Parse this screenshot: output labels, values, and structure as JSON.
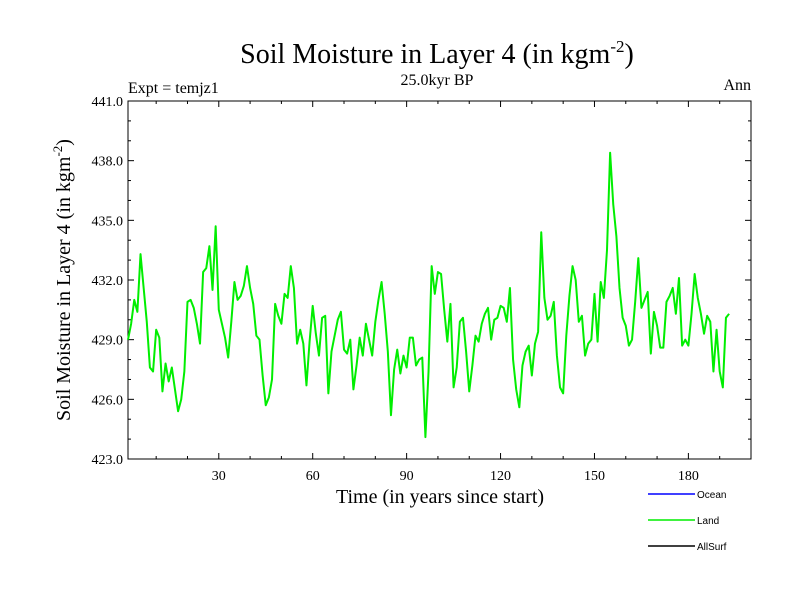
{
  "chart_data": {
    "type": "line",
    "title": "Soil Moisture in Layer 4 (in kgm",
    "title_sup": "-2",
    "title_close": ")",
    "subtitle_left": "Expt = temjz1",
    "subtitle_center": "25.0kyr BP",
    "subtitle_right": "Ann",
    "xlabel": "Time (in years since start)",
    "ylabel": "Soil Moisture in Layer 4 (in kgm",
    "ylabel_sup": "-2",
    "ylabel_close": ")",
    "xlim": [
      1,
      200
    ],
    "ylim": [
      423.0,
      441.0
    ],
    "xticks": [
      30,
      60,
      90,
      120,
      150,
      180
    ],
    "xtick_labels": [
      "30",
      "60",
      "90",
      "120",
      "150",
      "180"
    ],
    "yticks": [
      423.0,
      426.0,
      429.0,
      432.0,
      435.0,
      438.0,
      441.0
    ],
    "ytick_labels": [
      "423.0",
      "426.0",
      "429.0",
      "432.0",
      "435.0",
      "438.0",
      "441.0"
    ],
    "legend": [
      {
        "name": "Ocean",
        "color": "#0000ff"
      },
      {
        "name": "Land",
        "color": "#00ee00"
      },
      {
        "name": "AllSurf",
        "color": "#000000"
      }
    ],
    "series": [
      {
        "name": "Land",
        "color": "#00ee00",
        "x_start": 1,
        "x_step": 1,
        "values": [
          429.0,
          429.8,
          431.0,
          430.4,
          433.3,
          431.6,
          429.9,
          427.6,
          427.4,
          429.5,
          429.1,
          426.4,
          427.8,
          426.9,
          427.6,
          426.5,
          425.4,
          426.0,
          427.4,
          430.9,
          431.0,
          430.6,
          429.8,
          428.8,
          432.4,
          432.6,
          433.7,
          431.5,
          434.7,
          430.5,
          429.8,
          429.1,
          428.1,
          429.9,
          431.9,
          431.0,
          431.2,
          431.7,
          432.7,
          431.6,
          430.8,
          429.2,
          429.0,
          427.2,
          425.7,
          426.1,
          427.0,
          430.8,
          430.2,
          429.8,
          431.3,
          431.1,
          432.7,
          431.6,
          428.8,
          429.5,
          428.8,
          426.7,
          428.9,
          430.7,
          429.3,
          428.2,
          430.1,
          430.2,
          426.3,
          428.4,
          429.2,
          430.0,
          430.4,
          428.5,
          428.3,
          429.0,
          426.5,
          427.7,
          429.1,
          428.2,
          429.8,
          429.0,
          428.2,
          429.9,
          431.0,
          431.9,
          430.3,
          428.4,
          425.2,
          427.5,
          428.5,
          427.3,
          428.2,
          427.6,
          429.1,
          429.1,
          427.7,
          428.0,
          428.1,
          424.1,
          427.4,
          432.7,
          431.3,
          432.4,
          432.3,
          430.5,
          428.9,
          430.8,
          426.6,
          427.6,
          429.9,
          430.1,
          428.4,
          426.4,
          427.7,
          429.2,
          428.9,
          429.8,
          430.3,
          430.6,
          429.0,
          430.0,
          430.1,
          430.7,
          430.6,
          429.9,
          431.6,
          428.0,
          426.5,
          425.6,
          427.7,
          428.4,
          428.7,
          427.2,
          428.8,
          429.4,
          434.4,
          431.1,
          430.0,
          430.2,
          430.9,
          428.2,
          426.6,
          426.3,
          429.2,
          431.2,
          432.7,
          432.0,
          429.9,
          430.2,
          428.2,
          428.8,
          429.0,
          431.3,
          428.9,
          431.9,
          431.1,
          433.5,
          438.4,
          435.8,
          434.2,
          431.6,
          430.1,
          429.7,
          428.7,
          429.0,
          430.9,
          433.1,
          430.6,
          431.0,
          431.4,
          428.3,
          430.4,
          429.7,
          428.6,
          428.6,
          430.9,
          431.2,
          431.6,
          430.3,
          432.1,
          428.7,
          429.0,
          428.7,
          430.3,
          432.3,
          431.1,
          430.3,
          429.3,
          430.2,
          429.9,
          427.4,
          429.5,
          427.4,
          426.6,
          430.1,
          430.3
        ]
      }
    ]
  }
}
